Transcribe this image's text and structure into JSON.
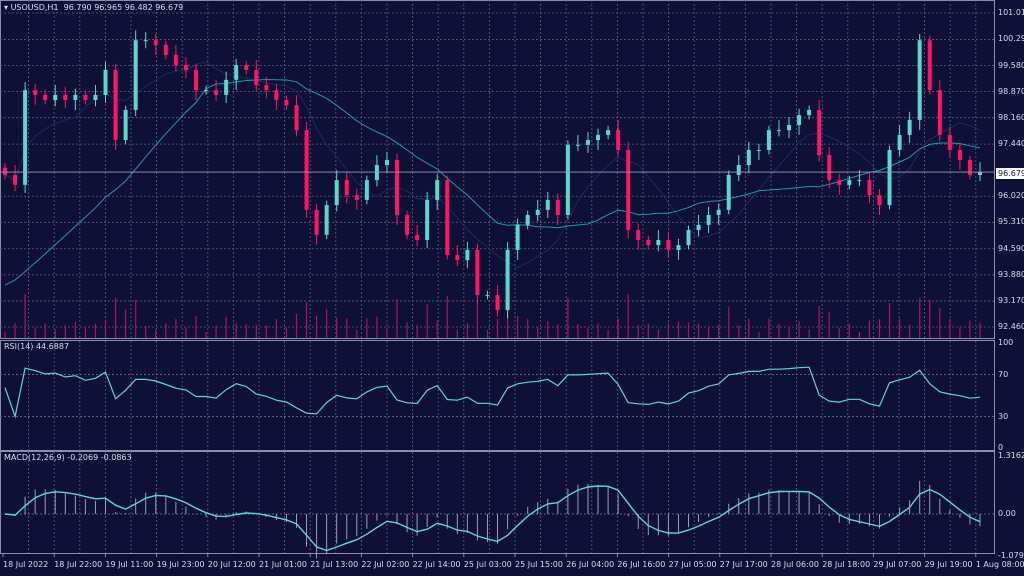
{
  "header": {
    "symbol": "USOUSD,H1",
    "open": "96.790",
    "high": "96.965",
    "low": "96.482",
    "close": "96.679"
  },
  "current_price_label": "96.679",
  "rsi": {
    "label": "RSI(14) 44.6887",
    "levels": [
      "100",
      "70",
      "30",
      "0"
    ]
  },
  "macd": {
    "label": "MACD(12,26,9) -0.2069 -0.0863",
    "levels": [
      "1.3162",
      "0.00",
      "-1.0798"
    ]
  },
  "colors": {
    "background": "#0f1036",
    "bull": "#5fd6cc",
    "bear": "#ff1466",
    "ma_slow": "#1f9aa6",
    "ma_fast": "#1d2a66",
    "indicator": "#5fd6cc",
    "volume": "#b0145a",
    "grid": "#5b5f80"
  },
  "chart_data": {
    "type": "candlestick",
    "title": "",
    "y_ticks": [
      "101.010",
      "100.290",
      "99.580",
      "98.870",
      "98.160",
      "97.440",
      "96.020",
      "95.310",
      "94.590",
      "93.880",
      "93.170",
      "92.460"
    ],
    "ylim": [
      92.46,
      101.01
    ],
    "x_ticks": [
      "18 Jul 2022",
      "18 Jul 22:00",
      "19 Jul 11:00",
      "19 Jul 23:00",
      "20 Jul 12:00",
      "21 Jul 01:00",
      "21 Jul 13:00",
      "22 Jul 02:00",
      "22 Jul 14:00",
      "25 Jul 03:00",
      "25 Jul 15:00",
      "26 Jul 04:00",
      "26 Jul 16:00",
      "27 Jul 05:00",
      "27 Jul 17:00",
      "28 Jul 06:00",
      "28 Jul 18:00",
      "29 Jul 07:00",
      "29 Jul 19:00",
      "1 Aug 08:00"
    ],
    "grid": true,
    "close": [
      96.6,
      96.33,
      98.91,
      98.78,
      98.64,
      98.78,
      98.64,
      98.78,
      98.64,
      98.78,
      99.46,
      97.55,
      98.37,
      100.27,
      100.27,
      100.14,
      99.87,
      99.59,
      99.46,
      98.91,
      98.91,
      98.78,
      99.19,
      99.59,
      99.46,
      99.05,
      98.91,
      98.64,
      98.5,
      97.82,
      95.65,
      94.97,
      95.78,
      96.46,
      96.05,
      95.92,
      96.46,
      96.87,
      97.01,
      95.51,
      94.97,
      94.83,
      95.92,
      96.46,
      94.42,
      94.28,
      94.56,
      93.33,
      93.33,
      92.92,
      94.56,
      95.24,
      95.51,
      95.65,
      95.92,
      95.51,
      97.42,
      97.42,
      97.55,
      97.69,
      97.82,
      97.28,
      95.1,
      94.83,
      94.69,
      94.83,
      94.56,
      94.69,
      95.1,
      95.24,
      95.51,
      95.65,
      96.6,
      96.87,
      97.28,
      97.28,
      97.82,
      97.82,
      97.96,
      98.23,
      98.37,
      97.14,
      96.46,
      96.33,
      96.46,
      96.46,
      96.05,
      95.78,
      97.28,
      97.69,
      98.1,
      100.27,
      98.91,
      97.69,
      97.28,
      97.01,
      96.6,
      96.68
    ]
  }
}
